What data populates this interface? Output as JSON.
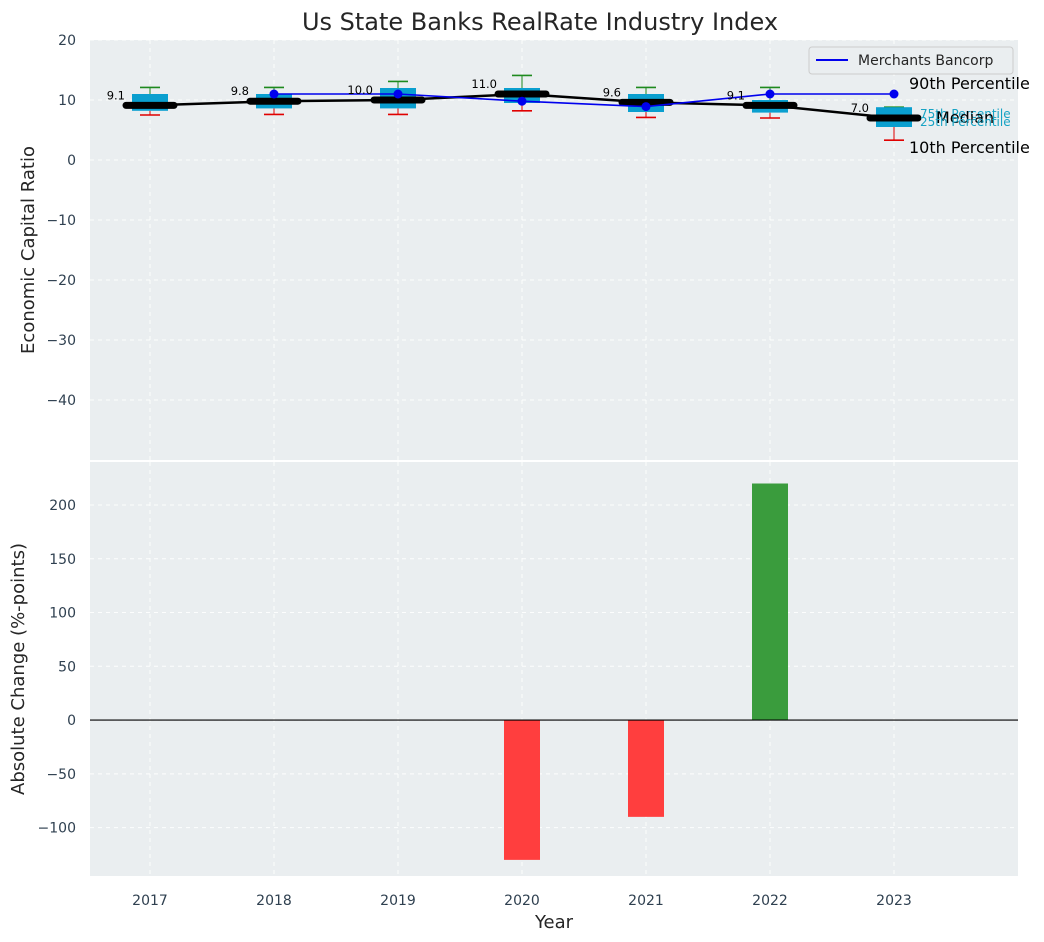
{
  "chart_data": [
    {
      "type": "boxplot+line",
      "title": "Us State Banks RealRate Industry Index",
      "xlabel": "",
      "ylabel": "Economic Capital Ratio",
      "ylim": [
        -50,
        20
      ],
      "yticks": [
        20,
        10,
        0,
        -10,
        -20,
        -30,
        -40
      ],
      "ytick_labels": [
        "20",
        "10",
        "0",
        "−10",
        "−20",
        "−30",
        "−40"
      ],
      "categories": [
        "2017",
        "2018",
        "2019",
        "2020",
        "2021",
        "2022",
        "2023"
      ],
      "industry": {
        "p10": [
          7.5,
          7.6,
          7.6,
          8.2,
          7.1,
          7.0,
          3.3
        ],
        "p25": [
          8.2,
          8.6,
          8.6,
          9.5,
          8.0,
          7.9,
          5.5
        ],
        "median": [
          9.1,
          9.8,
          10.0,
          11.0,
          9.6,
          9.1,
          7.0
        ],
        "p75": [
          11.0,
          11.0,
          12.0,
          12.0,
          11.0,
          10.0,
          8.8
        ],
        "p90": [
          12.1,
          12.1,
          13.1,
          14.1,
          12.1,
          12.1,
          8.8
        ]
      },
      "median_labels": [
        "9.1",
        "9.8",
        "10.0",
        "11.0",
        "9.6",
        "9.1",
        "7.0"
      ],
      "series": [
        {
          "name": "Merchants Bancorp",
          "values": [
            null,
            11.0,
            11.0,
            9.8,
            8.9,
            11.0,
            11.0
          ]
        }
      ],
      "legend_title": "Merchants Bancorp",
      "legend_position": "top-right",
      "annotations": {
        "p90": "90th Percentile",
        "p75": "75th Percentile",
        "median": "Median",
        "p25": "25th Percentile",
        "p10": "10th Percentile"
      }
    },
    {
      "type": "bar",
      "title": "",
      "xlabel": "Year",
      "ylabel": "Absolute Change (%-points)",
      "ylim": [
        -145,
        240
      ],
      "yticks": [
        200,
        150,
        100,
        50,
        0,
        -50,
        -100
      ],
      "ytick_labels": [
        "200",
        "150",
        "100",
        "50",
        "0",
        "−50",
        "−100"
      ],
      "categories": [
        "2017",
        "2018",
        "2019",
        "2020",
        "2021",
        "2022",
        "2023"
      ],
      "values": [
        0,
        0,
        0,
        -130,
        -90,
        220,
        0
      ]
    }
  ],
  "colors": {
    "axes_bg": "#eaeef0",
    "box": "#0a9fcf",
    "median": "#000000",
    "whisker_p90": "#1e8a1e",
    "whisker_p10": "#e00000",
    "bank_line": "#0000ee",
    "positive_bar": "#3a9c3d",
    "negative_bar": "#ff3e3e",
    "percentile_small": "#17a3c4"
  }
}
